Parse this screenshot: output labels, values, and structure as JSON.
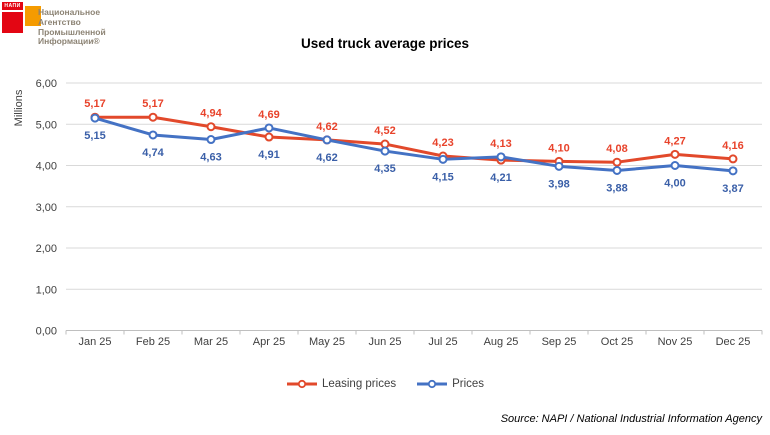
{
  "logo": {
    "badge": "НАПИ",
    "lines": [
      "Национальное",
      "Агентство",
      "Промышленной",
      "Информации®"
    ],
    "red": "#E30613",
    "orange": "#F59B00",
    "text_color": "#8C8374"
  },
  "chart_data": {
    "type": "line",
    "title": "Used truck average prices",
    "ylabel": "Millions",
    "categories": [
      "Jan 25",
      "Feb 25",
      "Mar 25",
      "Apr 25",
      "May 25",
      "Jun 25",
      "Jul 25",
      "Aug 25",
      "Sep 25",
      "Oct 25",
      "Nov 25",
      "Dec 25"
    ],
    "series": [
      {
        "name": "Leasing prices",
        "color": "#E2492B",
        "label_color": "#E8432B",
        "values": [
          5.17,
          5.17,
          4.94,
          4.69,
          4.62,
          4.52,
          4.23,
          4.13,
          4.1,
          4.08,
          4.27,
          4.16
        ]
      },
      {
        "name": "Prices",
        "color": "#4472C4",
        "label_color": "#3A5FA8",
        "values": [
          5.15,
          4.74,
          4.63,
          4.91,
          4.62,
          4.35,
          4.15,
          4.21,
          3.98,
          3.88,
          4.0,
          3.87
        ]
      }
    ],
    "ylim": [
      0,
      6
    ],
    "ytick_step": 1,
    "decimal_comma": true,
    "grid": true,
    "legend_position": "bottom",
    "grid_color": "#D9D9D9",
    "axis_color": "#BFBFBF",
    "tick_label_color": "#404040"
  },
  "source": "Source: NAPI / National Industrial Information Agency"
}
